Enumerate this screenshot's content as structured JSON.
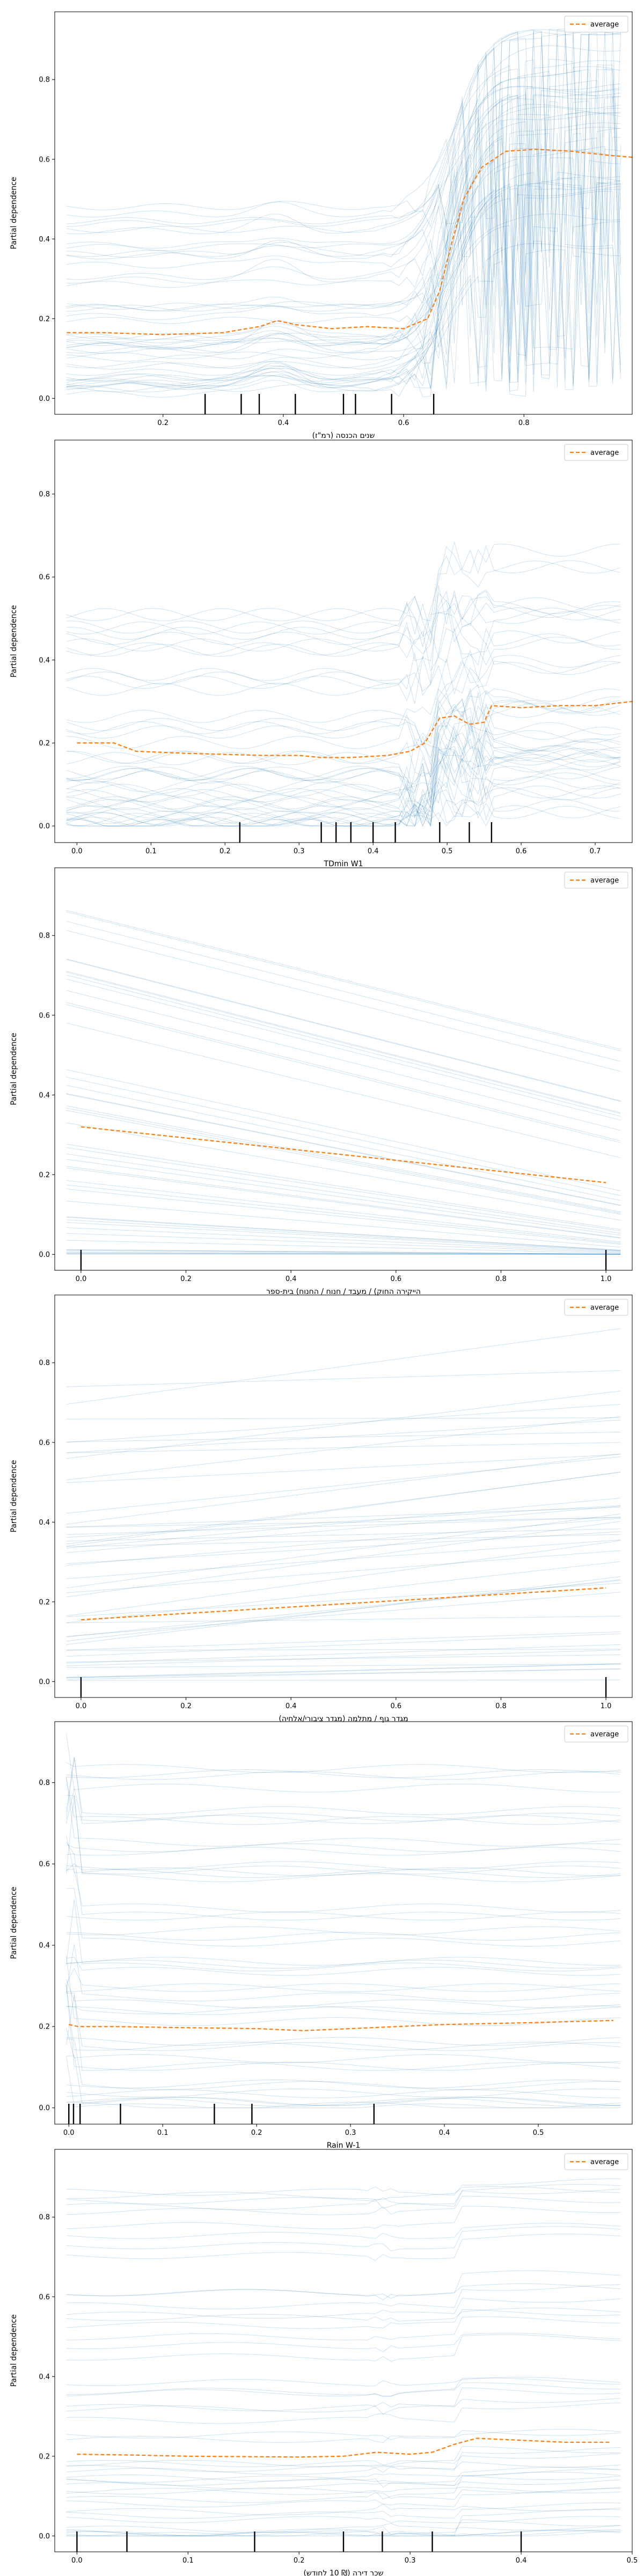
{
  "chart_data": [
    {
      "type": "line",
      "xlabel": "שנים הכנסה (רמ\"ז)",
      "ylabel": "Partial dependence",
      "xlim": [
        0.02,
        0.98
      ],
      "ylim": [
        -0.04,
        0.97
      ],
      "xticks": [
        0.2,
        0.4,
        0.6,
        0.8
      ],
      "yticks": [
        0.0,
        0.2,
        0.4,
        0.6,
        0.8
      ],
      "legend": {
        "label": "average",
        "position": "top-right"
      },
      "ice": {
        "shape": "sigmoid",
        "step_at": 0.68,
        "bump_at": 0.39,
        "num_lines": 48
      },
      "average": {
        "x": [
          0.04,
          0.1,
          0.2,
          0.3,
          0.36,
          0.39,
          0.42,
          0.48,
          0.54,
          0.6,
          0.64,
          0.66,
          0.68,
          0.7,
          0.73,
          0.77,
          0.82,
          0.88,
          0.94,
          0.98
        ],
        "y": [
          0.165,
          0.165,
          0.16,
          0.165,
          0.18,
          0.195,
          0.185,
          0.175,
          0.18,
          0.175,
          0.2,
          0.27,
          0.39,
          0.5,
          0.58,
          0.62,
          0.625,
          0.62,
          0.61,
          0.605
        ]
      },
      "rug": [
        0.27,
        0.33,
        0.36,
        0.42,
        0.5,
        0.52,
        0.58,
        0.65
      ]
    },
    {
      "type": "line",
      "xlabel": "TDmin W1",
      "ylabel": "Partial dependence",
      "xlim": [
        -0.03,
        0.75
      ],
      "ylim": [
        -0.04,
        0.93
      ],
      "xticks": [
        0.0,
        0.1,
        0.2,
        0.3,
        0.4,
        0.5,
        0.6,
        0.7
      ],
      "yticks": [
        0.0,
        0.2,
        0.4,
        0.6,
        0.8
      ],
      "legend": {
        "label": "average",
        "position": "top-right"
      },
      "ice": {
        "shape": "noisy_step",
        "step_at": 0.48,
        "bump_at": 0.3,
        "num_lines": 48
      },
      "average": {
        "x": [
          0.0,
          0.05,
          0.08,
          0.15,
          0.25,
          0.3,
          0.33,
          0.37,
          0.42,
          0.45,
          0.47,
          0.49,
          0.51,
          0.53,
          0.55,
          0.56,
          0.6,
          0.65,
          0.7,
          0.75
        ],
        "y": [
          0.2,
          0.2,
          0.18,
          0.175,
          0.17,
          0.17,
          0.165,
          0.165,
          0.17,
          0.18,
          0.2,
          0.26,
          0.265,
          0.245,
          0.25,
          0.29,
          0.285,
          0.29,
          0.29,
          0.3
        ]
      },
      "rug": [
        0.22,
        0.33,
        0.35,
        0.37,
        0.4,
        0.43,
        0.49,
        0.53,
        0.56
      ]
    },
    {
      "type": "line",
      "xlabel": "הייקירה החוק) / מעבד / חנוח / החנוח) בית-ספר",
      "ylabel": "Partial dependence",
      "xlim": [
        -0.05,
        1.05
      ],
      "ylim": [
        -0.04,
        0.97
      ],
      "xticks": [
        0.0,
        0.2,
        0.4,
        0.6,
        0.8,
        1.0
      ],
      "yticks": [
        0.0,
        0.2,
        0.4,
        0.6,
        0.8
      ],
      "legend": {
        "label": "average",
        "position": "top-right"
      },
      "ice": {
        "shape": "linear_down",
        "num_lines": 48
      },
      "average": {
        "x": [
          0.0,
          1.0
        ],
        "y": [
          0.32,
          0.18
        ]
      },
      "rug": [
        0.0,
        1.0
      ]
    },
    {
      "type": "line",
      "xlabel": "מגדר גוף / מתלמה (מגדר ציבורי/אלחיה)",
      "ylabel": "Partial dependence",
      "xlim": [
        -0.05,
        1.05
      ],
      "ylim": [
        -0.04,
        0.97
      ],
      "xticks": [
        0.0,
        0.2,
        0.4,
        0.6,
        0.8,
        1.0
      ],
      "yticks": [
        0.0,
        0.2,
        0.4,
        0.6,
        0.8
      ],
      "legend": {
        "label": "average",
        "position": "top-right"
      },
      "ice": {
        "shape": "linear_up",
        "num_lines": 48
      },
      "average": {
        "x": [
          0.0,
          1.0
        ],
        "y": [
          0.155,
          0.235
        ]
      },
      "rug": [
        0.0,
        1.0
      ]
    },
    {
      "type": "line",
      "xlabel": "Rain W-1",
      "ylabel": "Partial dependence",
      "xlim": [
        -0.015,
        0.6
      ],
      "ylim": [
        -0.04,
        0.95
      ],
      "xticks": [
        0.0,
        0.1,
        0.2,
        0.3,
        0.4,
        0.5
      ],
      "yticks": [
        0.0,
        0.2,
        0.4,
        0.6,
        0.8
      ],
      "legend": {
        "label": "average",
        "position": "top-right"
      },
      "ice": {
        "shape": "flat_spike",
        "num_lines": 48
      },
      "average": {
        "x": [
          0.0,
          0.01,
          0.05,
          0.1,
          0.2,
          0.25,
          0.3,
          0.4,
          0.5,
          0.58
        ],
        "y": [
          0.205,
          0.2,
          0.2,
          0.198,
          0.195,
          0.19,
          0.195,
          0.205,
          0.21,
          0.215
        ]
      },
      "rug": [
        0.0,
        0.005,
        0.012,
        0.055,
        0.155,
        0.195,
        0.325
      ]
    },
    {
      "type": "line",
      "xlabel": "שכר דירה (₪ 10 לחודש)",
      "ylabel": "Partial dependence",
      "xlim": [
        -0.02,
        0.5
      ],
      "ylim": [
        -0.04,
        0.97
      ],
      "xticks": [
        0.0,
        0.1,
        0.2,
        0.3,
        0.4,
        0.5
      ],
      "yticks": [
        0.0,
        0.2,
        0.4,
        0.6,
        0.8
      ],
      "legend": {
        "label": "average",
        "position": "top-right"
      },
      "ice": {
        "shape": "mild_step",
        "step_at": 0.34,
        "bump_at": 0.275,
        "num_lines": 48
      },
      "average": {
        "x": [
          0.0,
          0.05,
          0.1,
          0.2,
          0.24,
          0.27,
          0.3,
          0.32,
          0.34,
          0.36,
          0.4,
          0.44,
          0.48
        ],
        "y": [
          0.205,
          0.203,
          0.2,
          0.198,
          0.2,
          0.21,
          0.205,
          0.21,
          0.23,
          0.245,
          0.24,
          0.235,
          0.235
        ]
      },
      "rug": [
        0.0,
        0.045,
        0.16,
        0.24,
        0.275,
        0.32,
        0.4
      ]
    }
  ]
}
